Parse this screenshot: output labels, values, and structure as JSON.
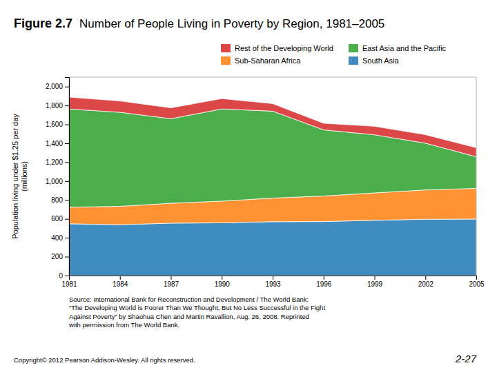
{
  "chart_data": {
    "type": "area",
    "stacked": true,
    "title": "Figure 2.7",
    "subtitle": "Number of People Living in Poverty by Region, 1981–2005",
    "ylabel": "Population living under $1.25 per day\n(millions)",
    "x": [
      1981,
      1984,
      1987,
      1990,
      1993,
      1996,
      1999,
      2002,
      2005
    ],
    "series": [
      {
        "name": "South Asia",
        "values": [
          548,
          538,
          555,
          558,
          570,
          572,
          585,
          596,
          598
        ]
      },
      {
        "name": "Sub-Saharan Africa",
        "values": [
          175,
          195,
          210,
          230,
          250,
          270,
          290,
          310,
          325
        ]
      },
      {
        "name": "East Asia and the Pacific",
        "values": [
          1040,
          995,
          895,
          975,
          920,
          700,
          615,
          495,
          335
        ]
      },
      {
        "name": "Rest of the Developing World",
        "values": [
          125,
          120,
          115,
          110,
          80,
          70,
          90,
          90,
          95
        ]
      }
    ],
    "xlim": [
      1981,
      2005
    ],
    "xticks": [
      1981,
      1984,
      1987,
      1990,
      1993,
      1996,
      1999,
      2002,
      2005
    ],
    "ylim": [
      0,
      2100
    ],
    "yticks": [
      0,
      200,
      400,
      600,
      800,
      {
        "value": 1000,
        "label": "1,000"
      },
      {
        "value": 1200,
        "label": "1,200"
      },
      {
        "value": 1400,
        "label": "1,400"
      },
      {
        "value": 1600,
        "label": "1,600"
      },
      {
        "value": 1800,
        "label": "1,800"
      },
      {
        "value": 2000,
        "label": "2,000"
      }
    ],
    "grid": false,
    "legend": "top",
    "annotations": [
      "Source: International Bank for Reconstruction and Development / The World Bank:\n“The Developing World is Poorer Than We Thought, But No Less Successful in the Fight\nAgainst Poverty” by Shaohua Chen and Martin Ravallion, Aug. 26, 2008.  Reprinted\nwith permission from The World Bank.",
      "Copyright© 2012 Pearson Addison-Wesley. All rights reserved.",
      "2-27"
    ]
  }
}
